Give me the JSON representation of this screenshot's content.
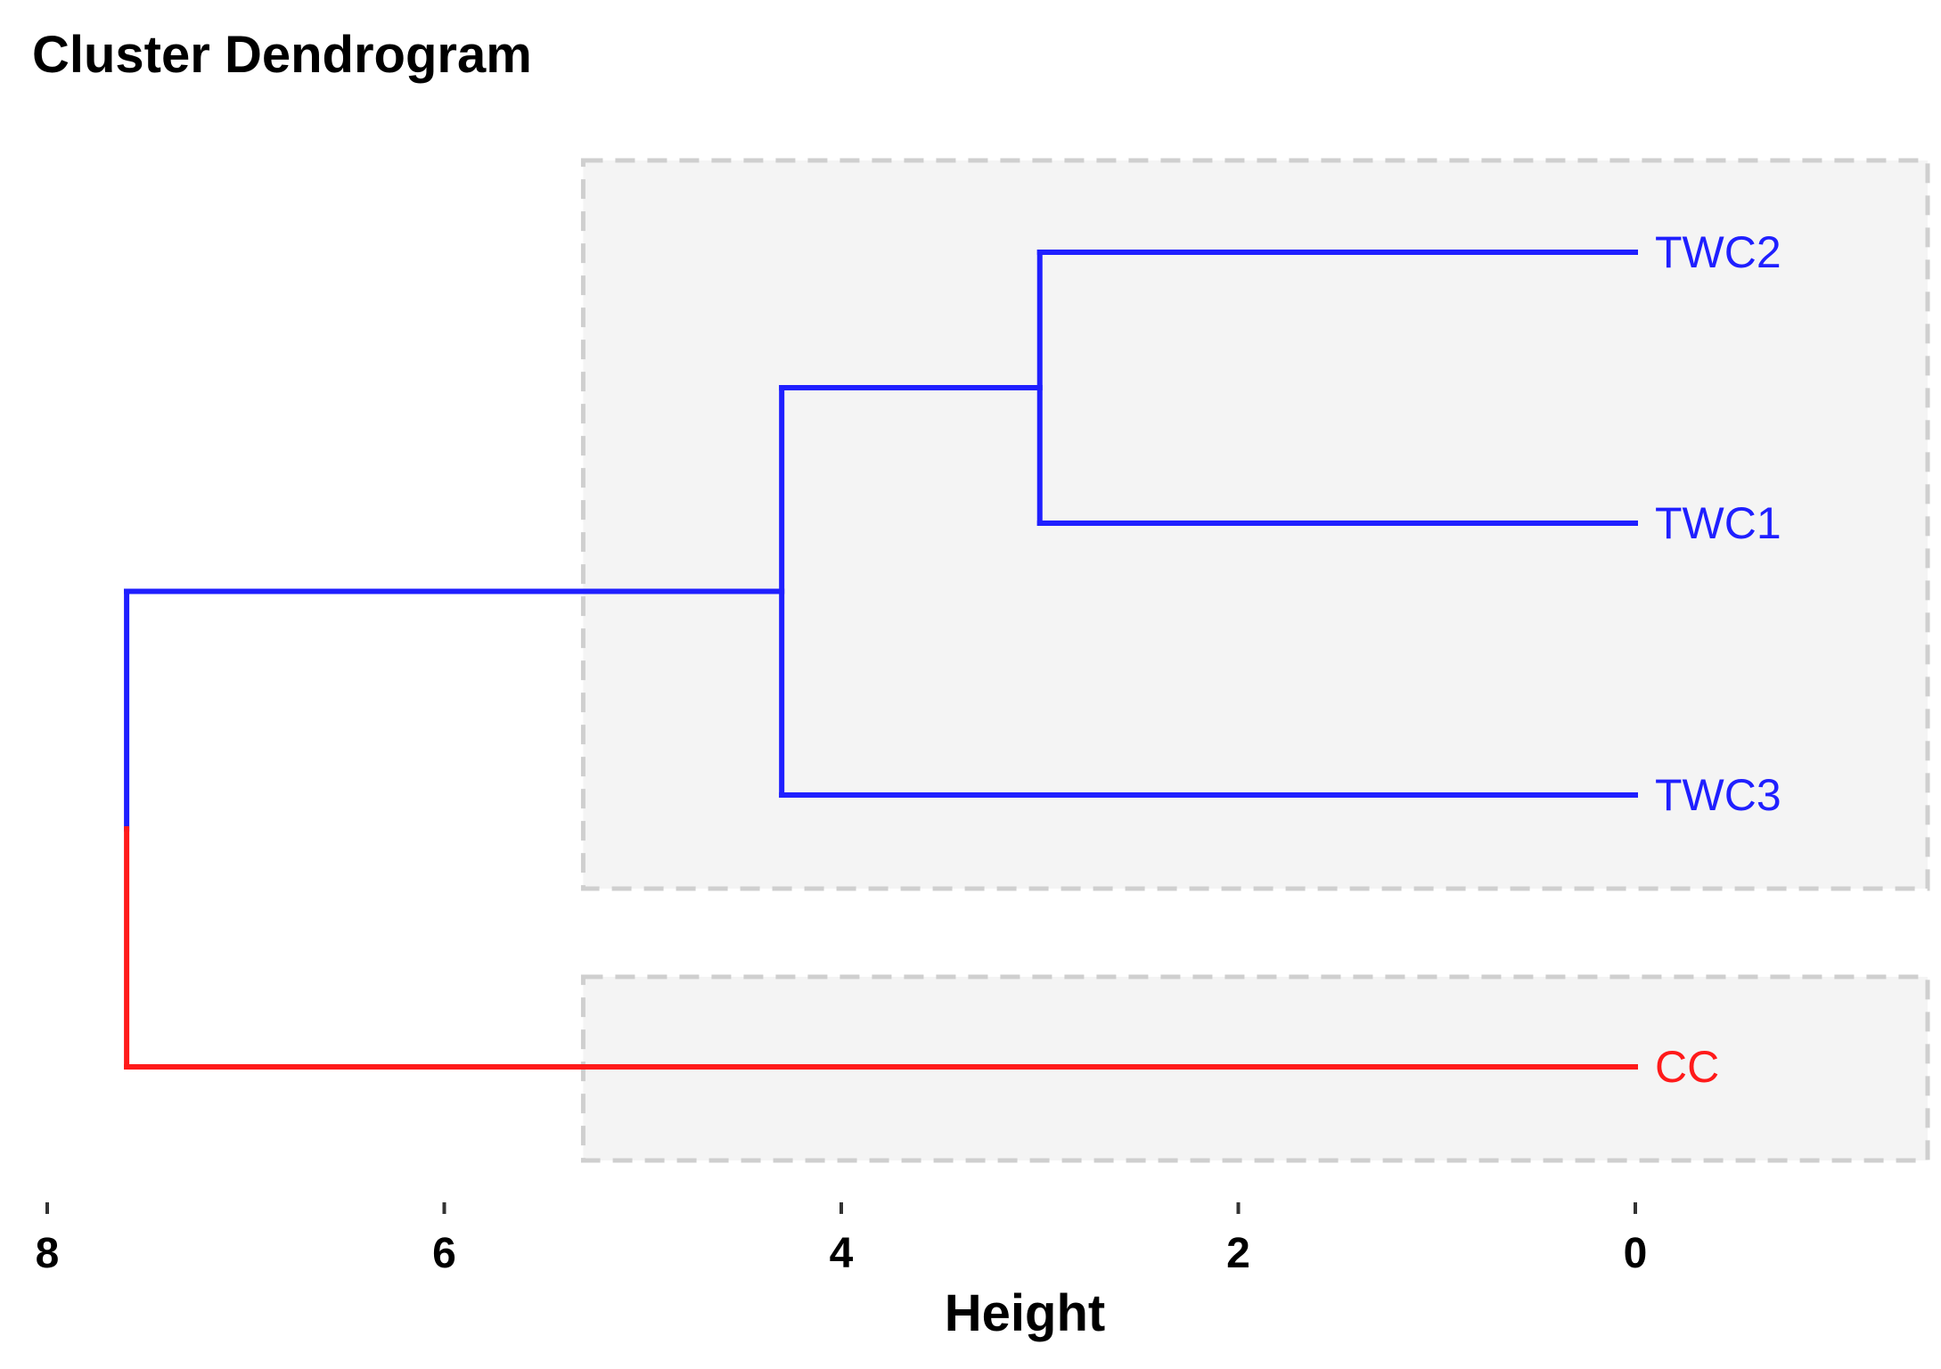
{
  "chart_data": {
    "type": "dendrogram",
    "title": "Cluster Dendrogram",
    "xlabel": "Height",
    "xlim": [
      8,
      0
    ],
    "x_ticks": [
      "8",
      "6",
      "4",
      "2",
      "0"
    ],
    "leaves": [
      {
        "label": "TWC2",
        "color": "#1f1fff"
      },
      {
        "label": "TWC1",
        "color": "#1f1fff"
      },
      {
        "label": "TWC3",
        "color": "#1f1fff"
      },
      {
        "label": "CC",
        "color": "#ff1a1a"
      }
    ],
    "merges": [
      {
        "items": [
          "TWC2",
          "TWC1"
        ],
        "height": 3.0,
        "color": "#1f1fff"
      },
      {
        "items": [
          "TWC2+TWC1",
          "TWC3"
        ],
        "height": 4.3,
        "color": "#1f1fff"
      },
      {
        "items": [
          "TWC2+TWC1+TWC3",
          "CC"
        ],
        "height": 7.6,
        "upper_color": "#1f1fff",
        "lower_color": "#ff1a1a"
      }
    ],
    "cluster_boxes": [
      {
        "members": [
          "TWC2",
          "TWC1",
          "TWC3"
        ],
        "from_height": 5.3
      },
      {
        "members": [
          "CC"
        ],
        "from_height": 5.3
      }
    ],
    "colors": {
      "cluster1": "#1f1fff",
      "cluster2": "#ff1a1a",
      "box_fill": "#f4f4f4",
      "box_border": "#cfcfcf"
    }
  }
}
